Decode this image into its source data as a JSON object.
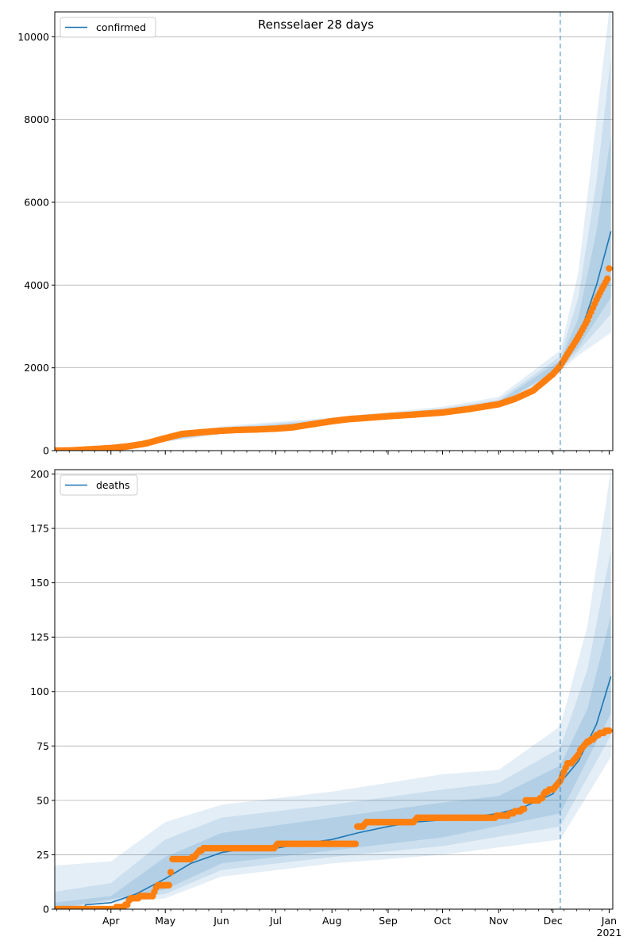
{
  "chart_data": [
    {
      "type": "line",
      "title": "Rensselaer 28 days",
      "legend": {
        "label": "confirmed",
        "placement": "top-left"
      },
      "ylim": [
        0,
        10600
      ],
      "yticks": [
        0,
        2000,
        4000,
        6000,
        8000,
        10000
      ],
      "ytick_labels": [
        "0",
        "2000",
        "4000",
        "6000",
        "8000",
        "10000"
      ],
      "grid": "y",
      "vline_date": "2020-12-05",
      "model": [
        [
          "2020-03-01",
          0
        ],
        [
          "2020-03-15",
          15
        ],
        [
          "2020-04-01",
          60
        ],
        [
          "2020-04-15",
          150
        ],
        [
          "2020-05-01",
          300
        ],
        [
          "2020-05-15",
          420
        ],
        [
          "2020-06-01",
          470
        ],
        [
          "2020-06-15",
          500
        ],
        [
          "2020-07-01",
          530
        ],
        [
          "2020-07-15",
          590
        ],
        [
          "2020-08-01",
          700
        ],
        [
          "2020-08-15",
          770
        ],
        [
          "2020-09-01",
          830
        ],
        [
          "2020-09-15",
          880
        ],
        [
          "2020-10-01",
          950
        ],
        [
          "2020-10-15",
          1020
        ],
        [
          "2020-11-01",
          1140
        ],
        [
          "2020-11-15",
          1380
        ],
        [
          "2020-12-01",
          1850
        ],
        [
          "2020-12-05",
          2060
        ],
        [
          "2020-12-15",
          2700
        ],
        [
          "2020-12-25",
          4000
        ],
        [
          "2021-01-02",
          5300
        ]
      ],
      "bands": [
        {
          "opacity": 0.12,
          "lower": [
            [
              "2020-03-01",
              0
            ],
            [
              "2020-04-15",
              110
            ],
            [
              "2020-06-01",
              400
            ],
            [
              "2020-08-01",
              640
            ],
            [
              "2020-10-01",
              890
            ],
            [
              "2020-11-01",
              1060
            ],
            [
              "2020-12-05",
              1920
            ],
            [
              "2020-12-15",
              2300
            ],
            [
              "2021-01-02",
              2850
            ]
          ],
          "upper": [
            [
              "2020-03-01",
              10
            ],
            [
              "2020-04-15",
              210
            ],
            [
              "2020-06-01",
              590
            ],
            [
              "2020-08-01",
              800
            ],
            [
              "2020-10-01",
              1060
            ],
            [
              "2020-11-01",
              1300
            ],
            [
              "2020-12-05",
              2420
            ],
            [
              "2020-12-15",
              4300
            ],
            [
              "2020-12-25",
              8000
            ],
            [
              "2021-01-01",
              10600
            ],
            [
              "2021-01-02",
              10600
            ]
          ]
        },
        {
          "opacity": 0.12,
          "lower": [
            [
              "2020-03-01",
              0
            ],
            [
              "2020-04-15",
              125
            ],
            [
              "2020-06-01",
              420
            ],
            [
              "2020-08-01",
              660
            ],
            [
              "2020-10-01",
              910
            ],
            [
              "2020-11-01",
              1090
            ],
            [
              "2020-12-05",
              1960
            ],
            [
              "2020-12-15",
              2400
            ],
            [
              "2021-01-02",
              3300
            ]
          ],
          "upper": [
            [
              "2020-03-01",
              5
            ],
            [
              "2020-04-15",
              190
            ],
            [
              "2020-06-01",
              550
            ],
            [
              "2020-08-01",
              770
            ],
            [
              "2020-10-01",
              1020
            ],
            [
              "2020-11-01",
              1230
            ],
            [
              "2020-12-05",
              2280
            ],
            [
              "2020-12-15",
              3700
            ],
            [
              "2020-12-25",
              6500
            ],
            [
              "2021-01-02",
              9500
            ]
          ]
        },
        {
          "opacity": 0.14,
          "lower": [
            [
              "2020-03-01",
              0
            ],
            [
              "2020-04-15",
              135
            ],
            [
              "2020-06-01",
              440
            ],
            [
              "2020-08-01",
              680
            ],
            [
              "2020-10-01",
              925
            ],
            [
              "2020-11-01",
              1110
            ],
            [
              "2020-12-05",
              2000
            ],
            [
              "2020-12-15",
              2500
            ],
            [
              "2021-01-02",
              3700
            ]
          ],
          "upper": [
            [
              "2020-03-01",
              3
            ],
            [
              "2020-04-15",
              170
            ],
            [
              "2020-06-01",
              510
            ],
            [
              "2020-08-01",
              740
            ],
            [
              "2020-10-01",
              990
            ],
            [
              "2020-11-01",
              1180
            ],
            [
              "2020-12-05",
              2180
            ],
            [
              "2020-12-15",
              3200
            ],
            [
              "2020-12-25",
              5300
            ],
            [
              "2021-01-02",
              7600
            ]
          ]
        }
      ],
      "observed": [
        [
          "2020-03-01",
          0
        ],
        [
          "2020-03-10",
          5
        ],
        [
          "2020-03-20",
          30
        ],
        [
          "2020-04-01",
          60
        ],
        [
          "2020-04-10",
          100
        ],
        [
          "2020-04-20",
          170
        ],
        [
          "2020-05-01",
          300
        ],
        [
          "2020-05-10",
          400
        ],
        [
          "2020-05-20",
          440
        ],
        [
          "2020-06-01",
          480
        ],
        [
          "2020-06-10",
          500
        ],
        [
          "2020-06-20",
          510
        ],
        [
          "2020-07-01",
          530
        ],
        [
          "2020-07-10",
          560
        ],
        [
          "2020-07-20",
          630
        ],
        [
          "2020-08-01",
          710
        ],
        [
          "2020-08-10",
          760
        ],
        [
          "2020-08-20",
          790
        ],
        [
          "2020-09-01",
          830
        ],
        [
          "2020-09-15",
          870
        ],
        [
          "2020-10-01",
          920
        ],
        [
          "2020-10-15",
          1000
        ],
        [
          "2020-11-01",
          1120
        ],
        [
          "2020-11-10",
          1250
        ],
        [
          "2020-11-20",
          1450
        ],
        [
          "2020-12-01",
          1850
        ],
        [
          "2020-12-05",
          2050
        ],
        [
          "2020-12-10",
          2400
        ],
        [
          "2020-12-15",
          2750
        ],
        [
          "2020-12-20",
          3150
        ],
        [
          "2020-12-25",
          3650
        ],
        [
          "2020-12-28",
          3900
        ],
        [
          "2020-12-31",
          4150
        ],
        [
          "2021-01-01",
          4400
        ]
      ]
    },
    {
      "type": "line",
      "title": "",
      "legend": {
        "label": "deaths",
        "placement": "top-left"
      },
      "ylim": [
        0,
        202
      ],
      "yticks": [
        0,
        25,
        50,
        75,
        100,
        125,
        150,
        175,
        200
      ],
      "ytick_labels": [
        "0",
        "25",
        "50",
        "75",
        "100",
        "125",
        "150",
        "175",
        "200"
      ],
      "grid": "y",
      "vline_date": "2020-12-05",
      "model": [
        [
          "2020-03-01",
          0
        ],
        [
          "2020-03-17",
          0
        ],
        [
          "2020-03-18",
          2
        ],
        [
          "2020-04-01",
          3
        ],
        [
          "2020-04-15",
          7
        ],
        [
          "2020-05-01",
          14
        ],
        [
          "2020-05-15",
          21
        ],
        [
          "2020-06-01",
          26
        ],
        [
          "2020-06-15",
          28
        ],
        [
          "2020-07-01",
          28
        ],
        [
          "2020-07-15",
          30
        ],
        [
          "2020-08-01",
          32
        ],
        [
          "2020-08-15",
          35
        ],
        [
          "2020-09-01",
          38
        ],
        [
          "2020-09-15",
          40
        ],
        [
          "2020-10-01",
          41
        ],
        [
          "2020-10-15",
          42
        ],
        [
          "2020-11-01",
          44
        ],
        [
          "2020-11-15",
          47
        ],
        [
          "2020-12-01",
          53
        ],
        [
          "2020-12-05",
          58
        ],
        [
          "2020-12-15",
          68
        ],
        [
          "2020-12-25",
          85
        ],
        [
          "2021-01-02",
          107
        ]
      ],
      "bands": [
        {
          "opacity": 0.12,
          "lower": [
            [
              "2020-03-01",
              0
            ],
            [
              "2020-05-01",
              5
            ],
            [
              "2020-06-01",
              15
            ],
            [
              "2020-08-01",
              21
            ],
            [
              "2020-10-01",
              25
            ],
            [
              "2020-12-05",
              32
            ],
            [
              "2021-01-02",
              70
            ]
          ],
          "upper": [
            [
              "2020-03-01",
              20
            ],
            [
              "2020-04-01",
              22
            ],
            [
              "2020-05-01",
              40
            ],
            [
              "2020-06-01",
              48
            ],
            [
              "2020-08-01",
              54
            ],
            [
              "2020-10-01",
              62
            ],
            [
              "2020-11-01",
              64
            ],
            [
              "2020-12-05",
              84
            ],
            [
              "2020-12-20",
              130
            ],
            [
              "2021-01-02",
              202
            ]
          ]
        },
        {
          "opacity": 0.12,
          "lower": [
            [
              "2020-03-01",
              0
            ],
            [
              "2020-05-01",
              7
            ],
            [
              "2020-06-01",
              18
            ],
            [
              "2020-08-01",
              24
            ],
            [
              "2020-10-01",
              29
            ],
            [
              "2020-12-05",
              38
            ],
            [
              "2021-01-02",
              80
            ]
          ],
          "upper": [
            [
              "2020-03-01",
              8
            ],
            [
              "2020-04-01",
              12
            ],
            [
              "2020-05-01",
              32
            ],
            [
              "2020-06-01",
              42
            ],
            [
              "2020-08-01",
              48
            ],
            [
              "2020-10-01",
              55
            ],
            [
              "2020-11-01",
              58
            ],
            [
              "2020-12-05",
              74
            ],
            [
              "2020-12-20",
              110
            ],
            [
              "2021-01-02",
              165
            ]
          ]
        },
        {
          "opacity": 0.15,
          "lower": [
            [
              "2020-03-01",
              0
            ],
            [
              "2020-05-01",
              9
            ],
            [
              "2020-06-01",
              21
            ],
            [
              "2020-08-01",
              27
            ],
            [
              "2020-10-01",
              33
            ],
            [
              "2020-12-05",
              44
            ],
            [
              "2021-01-02",
              90
            ]
          ],
          "upper": [
            [
              "2020-03-01",
              3
            ],
            [
              "2020-04-01",
              6
            ],
            [
              "2020-05-01",
              24
            ],
            [
              "2020-06-01",
              35
            ],
            [
              "2020-08-01",
              42
            ],
            [
              "2020-10-01",
              49
            ],
            [
              "2020-11-01",
              52
            ],
            [
              "2020-12-05",
              66
            ],
            [
              "2020-12-20",
              92
            ],
            [
              "2021-01-02",
              135
            ]
          ]
        }
      ],
      "observed": [
        [
          "2020-03-01",
          0
        ],
        [
          "2020-03-15",
          0
        ],
        [
          "2020-04-01",
          0
        ],
        [
          "2020-04-07",
          1
        ],
        [
          "2020-04-10",
          2
        ],
        [
          "2020-04-12",
          5
        ],
        [
          "2020-04-15",
          5
        ],
        [
          "2020-04-18",
          6
        ],
        [
          "2020-04-21",
          6
        ],
        [
          "2020-04-24",
          6
        ],
        [
          "2020-04-26",
          10
        ],
        [
          "2020-04-28",
          11
        ],
        [
          "2020-05-01",
          11
        ],
        [
          "2020-05-03",
          11
        ],
        [
          "2020-05-05",
          23
        ],
        [
          "2020-05-10",
          23
        ],
        [
          "2020-05-15",
          23
        ],
        [
          "2020-05-18",
          25
        ],
        [
          "2020-05-22",
          28
        ],
        [
          "2020-06-01",
          28
        ],
        [
          "2020-06-15",
          28
        ],
        [
          "2020-06-30",
          28
        ],
        [
          "2020-07-02",
          30
        ],
        [
          "2020-07-15",
          30
        ],
        [
          "2020-08-01",
          30
        ],
        [
          "2020-08-14",
          30
        ],
        [
          "2020-08-15",
          38
        ],
        [
          "2020-08-18",
          38
        ],
        [
          "2020-08-20",
          40
        ],
        [
          "2020-09-01",
          40
        ],
        [
          "2020-09-15",
          40
        ],
        [
          "2020-09-17",
          42
        ],
        [
          "2020-10-01",
          42
        ],
        [
          "2020-10-15",
          42
        ],
        [
          "2020-10-30",
          42
        ],
        [
          "2020-11-01",
          43
        ],
        [
          "2020-11-05",
          43
        ],
        [
          "2020-11-08",
          44
        ],
        [
          "2020-11-12",
          45
        ],
        [
          "2020-11-15",
          46
        ],
        [
          "2020-11-16",
          50
        ],
        [
          "2020-11-22",
          50
        ],
        [
          "2020-11-25",
          51
        ],
        [
          "2020-11-27",
          54
        ],
        [
          "2020-12-01",
          55
        ],
        [
          "2020-12-03",
          57
        ],
        [
          "2020-12-05",
          59
        ],
        [
          "2020-12-07",
          63
        ],
        [
          "2020-12-09",
          67
        ],
        [
          "2020-12-11",
          67
        ],
        [
          "2020-12-13",
          69
        ],
        [
          "2020-12-15",
          71
        ],
        [
          "2020-12-17",
          74
        ],
        [
          "2020-12-19",
          76
        ],
        [
          "2020-12-21",
          77
        ],
        [
          "2020-12-23",
          78
        ],
        [
          "2020-12-25",
          80
        ],
        [
          "2020-12-28",
          81
        ],
        [
          "2021-01-01",
          82
        ]
      ]
    }
  ],
  "x_axis": {
    "range": [
      "2020-03-01",
      "2021-01-03"
    ],
    "month_ticks": [
      {
        "date": "2020-04-01",
        "label": "Apr"
      },
      {
        "date": "2020-05-01",
        "label": "May"
      },
      {
        "date": "2020-06-01",
        "label": "Jun"
      },
      {
        "date": "2020-07-01",
        "label": "Jul"
      },
      {
        "date": "2020-08-01",
        "label": "Aug"
      },
      {
        "date": "2020-09-01",
        "label": "Sep"
      },
      {
        "date": "2020-10-01",
        "label": "Oct"
      },
      {
        "date": "2020-11-01",
        "label": "Nov"
      },
      {
        "date": "2020-12-01",
        "label": "Dec"
      },
      {
        "date": "2021-01-01",
        "label": "Jan"
      }
    ],
    "year_label": "2021"
  },
  "colors": {
    "line": "#1f77b4",
    "band": "#1f77b4",
    "observed": "#ff7f0e",
    "grid": "#b0b0b0",
    "vline": "#1f77b4"
  }
}
